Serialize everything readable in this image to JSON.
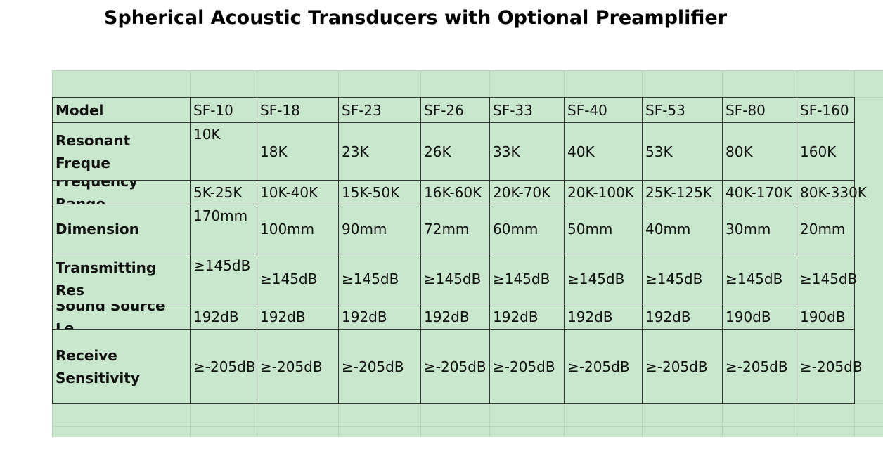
{
  "header": {
    "title": "Spherical Acoustic Transducers with Optional Preamplifier"
  },
  "table": {
    "rows": [
      [
        "Model",
        "SF-10",
        "SF-18",
        "SF-23",
        "SF-26",
        "SF-33",
        "SF-40",
        "SF-53",
        "SF-80",
        "SF-160"
      ],
      [
        "Resonant Freque",
        "10K",
        "18K",
        "23K",
        "26K",
        "33K",
        "40K",
        "53K",
        "80K",
        "160K"
      ],
      [
        "Frequency Range",
        "5K-25K",
        "10K-40K",
        "15K-50K",
        "16K-60K",
        "20K-70K",
        "20K-100K",
        "25K-125K",
        "40K-170K",
        "80K-330K"
      ],
      [
        "Dimension",
        "170mm",
        "100mm",
        "90mm",
        "72mm",
        "60mm",
        "50mm",
        "40mm",
        "30mm",
        "20mm"
      ],
      [
        "Transmitting Res",
        "≥145dB",
        "≥145dB",
        "≥145dB",
        "≥145dB",
        "≥145dB",
        "≥145dB",
        "≥145dB",
        "≥145dB",
        "≥145dB"
      ],
      [
        "Sound Source Le",
        "192dB",
        "192dB",
        "192dB",
        "192dB",
        "192dB",
        "192dB",
        "192dB",
        "190dB",
        "190dB"
      ],
      [
        "Receive Sensitivity",
        "≥-205dB",
        "≥-205dB",
        "≥-205dB",
        "≥-205dB",
        "≥-205dB",
        "≥-205dB",
        "≥-205dB",
        "≥-205dB",
        "≥-205dB"
      ]
    ]
  }
}
